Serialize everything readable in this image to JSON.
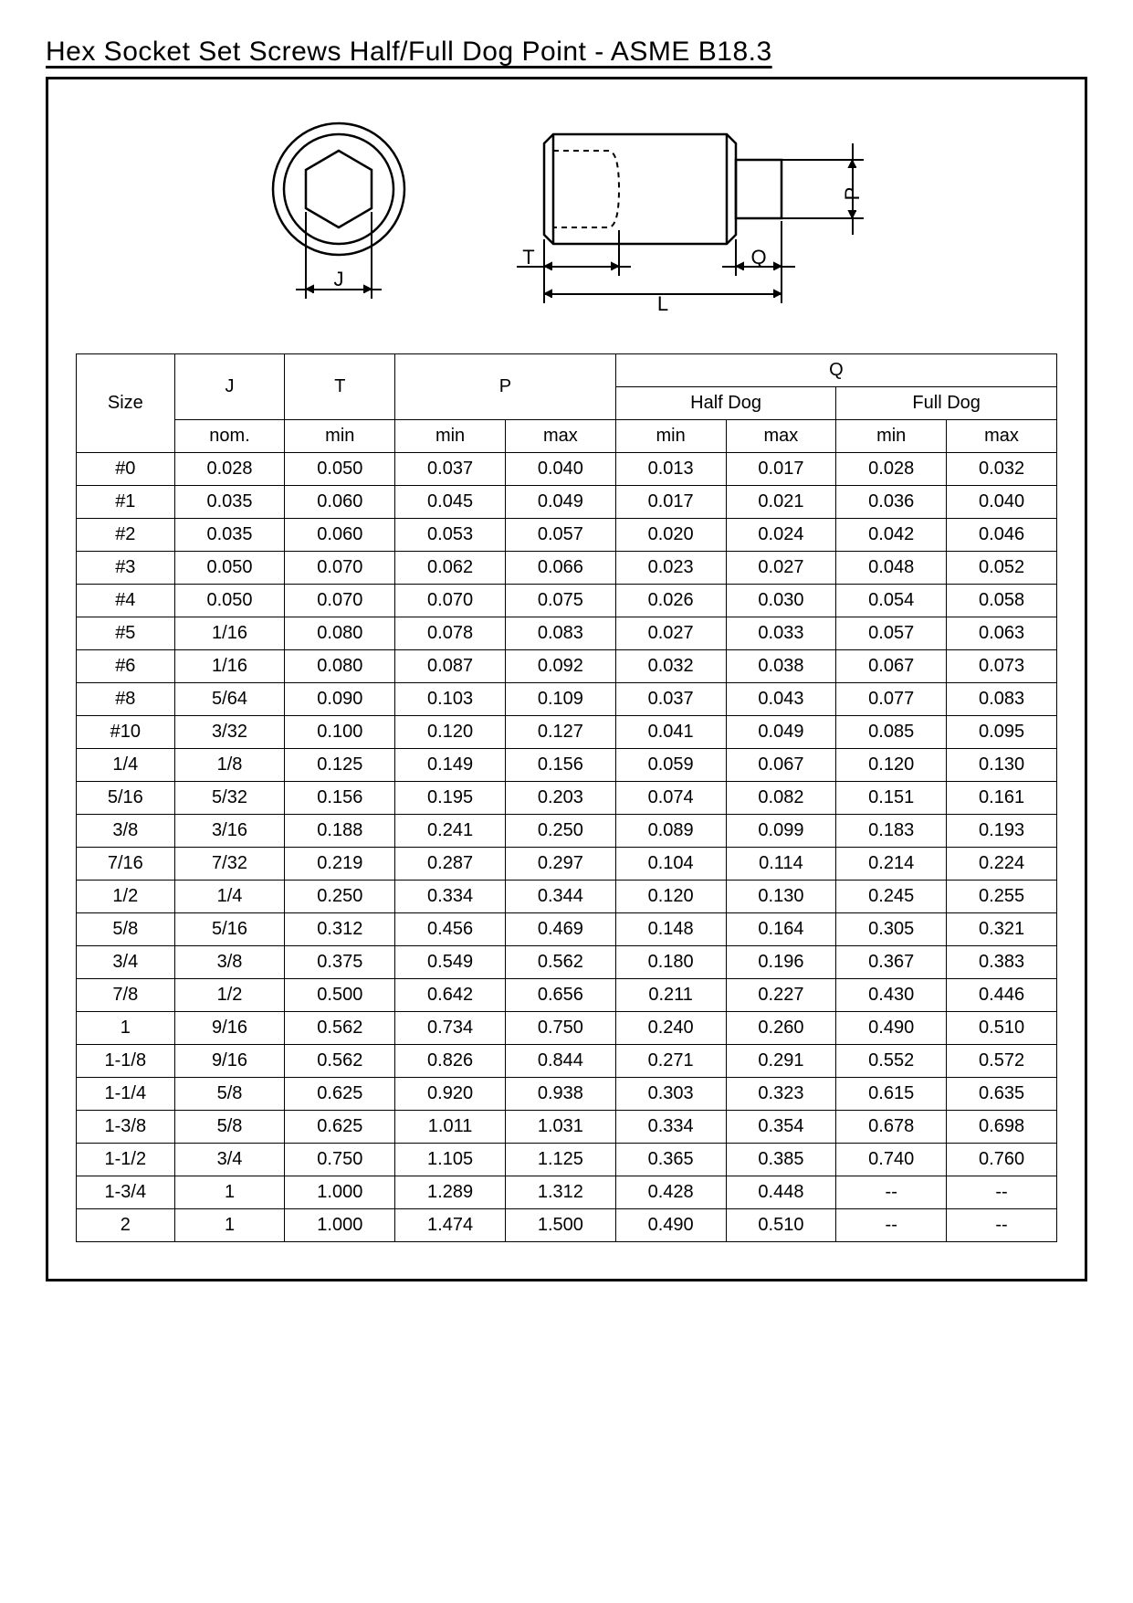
{
  "title": "Hex Socket Set Screws Half/Full Dog Point - ASME B18.3",
  "diagram_labels": {
    "J": "J",
    "T": "T",
    "L": "L",
    "Q": "Q",
    "P": "P"
  },
  "table": {
    "header": {
      "size": "Size",
      "J": "J",
      "T": "T",
      "P": "P",
      "Q": "Q",
      "half_dog": "Half Dog",
      "full_dog": "Full Dog",
      "nom": "nom.",
      "min": "min",
      "max": "max"
    },
    "rows": [
      {
        "size": "#0",
        "J": "0.028",
        "T": "0.050",
        "Pmin": "0.037",
        "Pmax": "0.040",
        "Hmin": "0.013",
        "Hmax": "0.017",
        "Fmin": "0.028",
        "Fmax": "0.032"
      },
      {
        "size": "#1",
        "J": "0.035",
        "T": "0.060",
        "Pmin": "0.045",
        "Pmax": "0.049",
        "Hmin": "0.017",
        "Hmax": "0.021",
        "Fmin": "0.036",
        "Fmax": "0.040"
      },
      {
        "size": "#2",
        "J": "0.035",
        "T": "0.060",
        "Pmin": "0.053",
        "Pmax": "0.057",
        "Hmin": "0.020",
        "Hmax": "0.024",
        "Fmin": "0.042",
        "Fmax": "0.046"
      },
      {
        "size": "#3",
        "J": "0.050",
        "T": "0.070",
        "Pmin": "0.062",
        "Pmax": "0.066",
        "Hmin": "0.023",
        "Hmax": "0.027",
        "Fmin": "0.048",
        "Fmax": "0.052"
      },
      {
        "size": "#4",
        "J": "0.050",
        "T": "0.070",
        "Pmin": "0.070",
        "Pmax": "0.075",
        "Hmin": "0.026",
        "Hmax": "0.030",
        "Fmin": "0.054",
        "Fmax": "0.058"
      },
      {
        "size": "#5",
        "J": "1/16",
        "T": "0.080",
        "Pmin": "0.078",
        "Pmax": "0.083",
        "Hmin": "0.027",
        "Hmax": "0.033",
        "Fmin": "0.057",
        "Fmax": "0.063"
      },
      {
        "size": "#6",
        "J": "1/16",
        "T": "0.080",
        "Pmin": "0.087",
        "Pmax": "0.092",
        "Hmin": "0.032",
        "Hmax": "0.038",
        "Fmin": "0.067",
        "Fmax": "0.073"
      },
      {
        "size": "#8",
        "J": "5/64",
        "T": "0.090",
        "Pmin": "0.103",
        "Pmax": "0.109",
        "Hmin": "0.037",
        "Hmax": "0.043",
        "Fmin": "0.077",
        "Fmax": "0.083"
      },
      {
        "size": "#10",
        "J": "3/32",
        "T": "0.100",
        "Pmin": "0.120",
        "Pmax": "0.127",
        "Hmin": "0.041",
        "Hmax": "0.049",
        "Fmin": "0.085",
        "Fmax": "0.095"
      },
      {
        "size": "1/4",
        "J": "1/8",
        "T": "0.125",
        "Pmin": "0.149",
        "Pmax": "0.156",
        "Hmin": "0.059",
        "Hmax": "0.067",
        "Fmin": "0.120",
        "Fmax": "0.130"
      },
      {
        "size": "5/16",
        "J": "5/32",
        "T": "0.156",
        "Pmin": "0.195",
        "Pmax": "0.203",
        "Hmin": "0.074",
        "Hmax": "0.082",
        "Fmin": "0.151",
        "Fmax": "0.161"
      },
      {
        "size": "3/8",
        "J": "3/16",
        "T": "0.188",
        "Pmin": "0.241",
        "Pmax": "0.250",
        "Hmin": "0.089",
        "Hmax": "0.099",
        "Fmin": "0.183",
        "Fmax": "0.193"
      },
      {
        "size": "7/16",
        "J": "7/32",
        "T": "0.219",
        "Pmin": "0.287",
        "Pmax": "0.297",
        "Hmin": "0.104",
        "Hmax": "0.114",
        "Fmin": "0.214",
        "Fmax": "0.224"
      },
      {
        "size": "1/2",
        "J": "1/4",
        "T": "0.250",
        "Pmin": "0.334",
        "Pmax": "0.344",
        "Hmin": "0.120",
        "Hmax": "0.130",
        "Fmin": "0.245",
        "Fmax": "0.255"
      },
      {
        "size": "5/8",
        "J": "5/16",
        "T": "0.312",
        "Pmin": "0.456",
        "Pmax": "0.469",
        "Hmin": "0.148",
        "Hmax": "0.164",
        "Fmin": "0.305",
        "Fmax": "0.321"
      },
      {
        "size": "3/4",
        "J": "3/8",
        "T": "0.375",
        "Pmin": "0.549",
        "Pmax": "0.562",
        "Hmin": "0.180",
        "Hmax": "0.196",
        "Fmin": "0.367",
        "Fmax": "0.383"
      },
      {
        "size": "7/8",
        "J": "1/2",
        "T": "0.500",
        "Pmin": "0.642",
        "Pmax": "0.656",
        "Hmin": "0.211",
        "Hmax": "0.227",
        "Fmin": "0.430",
        "Fmax": "0.446"
      },
      {
        "size": "1",
        "J": "9/16",
        "T": "0.562",
        "Pmin": "0.734",
        "Pmax": "0.750",
        "Hmin": "0.240",
        "Hmax": "0.260",
        "Fmin": "0.490",
        "Fmax": "0.510"
      },
      {
        "size": "1-1/8",
        "J": "9/16",
        "T": "0.562",
        "Pmin": "0.826",
        "Pmax": "0.844",
        "Hmin": "0.271",
        "Hmax": "0.291",
        "Fmin": "0.552",
        "Fmax": "0.572"
      },
      {
        "size": "1-1/4",
        "J": "5/8",
        "T": "0.625",
        "Pmin": "0.920",
        "Pmax": "0.938",
        "Hmin": "0.303",
        "Hmax": "0.323",
        "Fmin": "0.615",
        "Fmax": "0.635"
      },
      {
        "size": "1-3/8",
        "J": "5/8",
        "T": "0.625",
        "Pmin": "1.011",
        "Pmax": "1.031",
        "Hmin": "0.334",
        "Hmax": "0.354",
        "Fmin": "0.678",
        "Fmax": "0.698"
      },
      {
        "size": "1-1/2",
        "J": "3/4",
        "T": "0.750",
        "Pmin": "1.105",
        "Pmax": "1.125",
        "Hmin": "0.365",
        "Hmax": "0.385",
        "Fmin": "0.740",
        "Fmax": "0.760"
      },
      {
        "size": "1-3/4",
        "J": "1",
        "T": "1.000",
        "Pmin": "1.289",
        "Pmax": "1.312",
        "Hmin": "0.428",
        "Hmax": "0.448",
        "Fmin": "--",
        "Fmax": "--"
      },
      {
        "size": "2",
        "J": "1",
        "T": "1.000",
        "Pmin": "1.474",
        "Pmax": "1.500",
        "Hmin": "0.490",
        "Hmax": "0.510",
        "Fmin": "--",
        "Fmax": "--"
      }
    ]
  }
}
